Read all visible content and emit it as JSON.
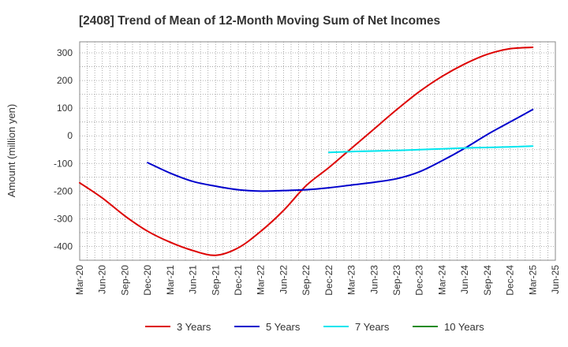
{
  "chart_data": {
    "type": "line",
    "title": "[2408]  Trend of Mean of 12-Month Moving Sum of Net Incomes",
    "ylabel": "Amount (million yen)",
    "ylim": [
      -450,
      340
    ],
    "yticks": [
      -400,
      -300,
      -200,
      -100,
      0,
      100,
      200,
      300
    ],
    "x_labels": [
      "Mar-20",
      "Jun-20",
      "Sep-20",
      "Dec-20",
      "Mar-21",
      "Jun-21",
      "Sep-21",
      "Dec-21",
      "Mar-22",
      "Jun-22",
      "Sep-22",
      "Dec-22",
      "Mar-23",
      "Jun-23",
      "Sep-23",
      "Dec-23",
      "Mar-24",
      "Jun-24",
      "Sep-24",
      "Dec-24",
      "Mar-25",
      "Jun-25"
    ],
    "grid": true,
    "legend_position": "bottom",
    "series": [
      {
        "name": "3 Years",
        "color": "#dd0000",
        "values": [
          -170,
          -225,
          -290,
          -345,
          -385,
          -415,
          -432,
          -405,
          -345,
          -270,
          -180,
          -115,
          -45,
          25,
          95,
          160,
          215,
          260,
          295,
          315,
          320,
          null
        ]
      },
      {
        "name": "5 Years",
        "color": "#0000cc",
        "values": [
          null,
          null,
          null,
          -97,
          -135,
          -165,
          -182,
          -195,
          -200,
          -198,
          -195,
          -188,
          -178,
          -168,
          -155,
          -130,
          -90,
          -45,
          5,
          50,
          95,
          null
        ]
      },
      {
        "name": "7 Years",
        "color": "#00e5ee",
        "values": [
          null,
          null,
          null,
          null,
          null,
          null,
          null,
          null,
          null,
          null,
          null,
          -60,
          -57,
          -55,
          -53,
          -50,
          -47,
          -44,
          -42,
          -40,
          -37,
          null
        ]
      },
      {
        "name": "10 Years",
        "color": "#228b22",
        "values": [
          null,
          null,
          null,
          null,
          null,
          null,
          null,
          null,
          null,
          null,
          null,
          null,
          null,
          null,
          null,
          null,
          null,
          null,
          null,
          null,
          null,
          null
        ]
      }
    ]
  }
}
